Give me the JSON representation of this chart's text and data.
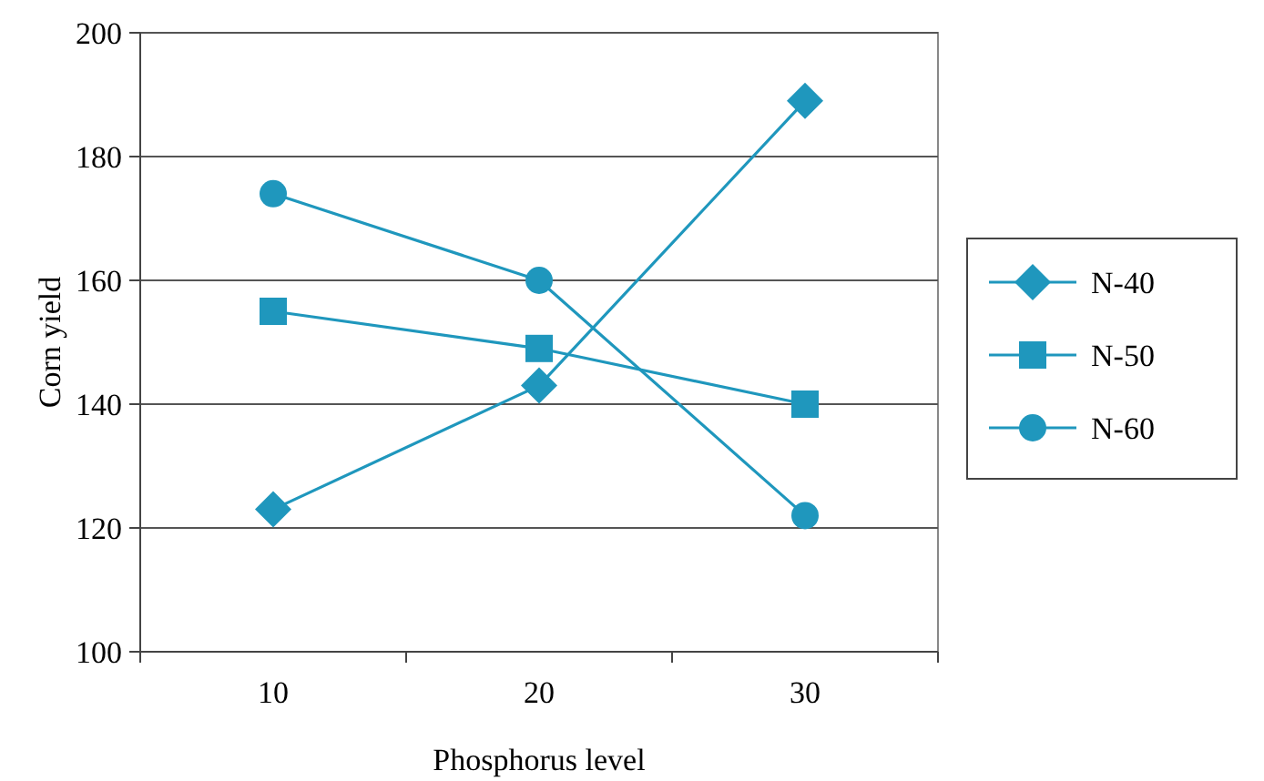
{
  "chart_data": {
    "type": "line",
    "xlabel": "Phosphorus level",
    "ylabel": "Corn yield",
    "categories": [
      "10",
      "20",
      "30"
    ],
    "series": [
      {
        "name": "N-40",
        "color": "#1f97bd",
        "marker": "diamond",
        "values": [
          123,
          143,
          189
        ]
      },
      {
        "name": "N-50",
        "color": "#1f97bd",
        "marker": "square",
        "values": [
          155,
          149,
          140
        ]
      },
      {
        "name": "N-60",
        "color": "#1f97bd",
        "marker": "circle",
        "values": [
          174,
          160,
          122
        ]
      }
    ],
    "ylim": [
      100,
      200
    ],
    "yticks": [
      100,
      120,
      140,
      160,
      180,
      200
    ],
    "grid": "y",
    "legend": "right"
  }
}
